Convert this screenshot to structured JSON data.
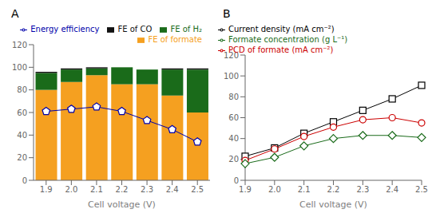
{
  "chart_data": [
    {
      "type": "bar",
      "title": "A",
      "stacked": true,
      "grid": false,
      "legend": "upper right",
      "categories": [
        "1.9",
        "2.0",
        "2.1",
        "2.2",
        "2.3",
        "2.4",
        "2.5"
      ],
      "x_label": "Cell voltage (V)",
      "ylim": [
        0,
        120
      ],
      "yticks": [
        0,
        20,
        40,
        60,
        80,
        100,
        120
      ],
      "y2lim": [
        0,
        120
      ],
      "series": [
        {
          "name": "FE of formate",
          "color": "#f5a020",
          "values": [
            80,
            87,
            93,
            85,
            85,
            75,
            60
          ]
        },
        {
          "name": "FE of H₂",
          "color": "#1a6b1a",
          "values": [
            15,
            11,
            6,
            15,
            13,
            23,
            38
          ]
        },
        {
          "name": "FE of CO",
          "color": "#111111",
          "values": [
            1,
            1,
            1,
            0,
            0,
            1,
            1
          ]
        },
        {
          "name": "Energy efficiency",
          "type": "line",
          "axis": "y2",
          "color": "#0000aa",
          "marker": "pentagon",
          "values": [
            61,
            63,
            65,
            61,
            53,
            45,
            34
          ]
        }
      ]
    },
    {
      "type": "line",
      "title": "B",
      "grid": false,
      "legend": "upper left",
      "categories": [
        "1.9",
        "2.0",
        "2.1",
        "2.2",
        "2.3",
        "2.4",
        "2.5"
      ],
      "x_label": "Cell voltage (V)",
      "ylim": [
        0,
        120
      ],
      "yticks": [
        0,
        20,
        40,
        60,
        80,
        100,
        120
      ],
      "series": [
        {
          "name": "Current density (mA cm⁻²)",
          "color": "#000000",
          "marker": "square",
          "values": [
            23,
            31,
            45,
            56,
            67,
            78,
            91
          ]
        },
        {
          "name": "PCD of formate (mA cm⁻²)",
          "color": "#cc0000",
          "marker": "circle",
          "values": [
            19,
            30,
            42,
            51,
            58,
            60,
            55
          ]
        },
        {
          "name": "Formate concentration (g L⁻¹)",
          "color": "#1a6b1a",
          "marker": "diamond",
          "values": [
            16,
            22,
            33,
            40,
            43,
            43,
            41
          ]
        }
      ]
    }
  ]
}
